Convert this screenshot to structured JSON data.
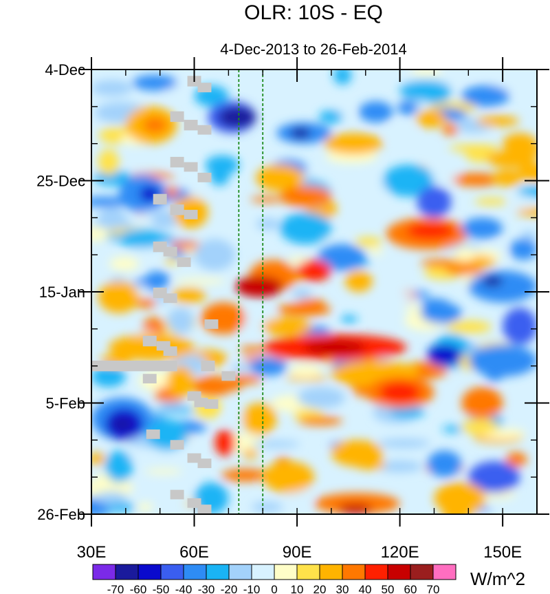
{
  "chart_data": {
    "type": "heatmap",
    "title": "OLR: 10S - EQ",
    "subtitle": "4-Dec-2013 to 26-Feb-2014",
    "x_axis": {
      "range": [
        30,
        160
      ],
      "ticks": [
        30,
        60,
        90,
        120,
        150
      ],
      "tick_labels": [
        "30E",
        "60E",
        "90E",
        "120E",
        "150E"
      ]
    },
    "y_axis": {
      "start_date": "4-Dec-2013",
      "end_date": "26-Feb-2014",
      "range_days": [
        0,
        84
      ],
      "major_ticks_days": [
        0,
        21,
        42,
        63,
        84
      ],
      "tick_labels": [
        "4-Dec",
        "25-Dec",
        "15-Jan",
        "5-Feb",
        "26-Feb"
      ],
      "minor_tick_interval_days": 7
    },
    "reference_lines_lon": [
      73,
      80
    ],
    "colorbar": {
      "units": "W/m^2",
      "levels": [
        -70,
        -60,
        -50,
        -40,
        -30,
        -20,
        -10,
        0,
        10,
        20,
        30,
        40,
        50,
        60,
        70
      ],
      "level_labels": [
        "-70",
        "-60",
        "-50",
        "-40",
        "-30",
        "-20",
        "-10",
        "0",
        "10",
        "20",
        "30",
        "40",
        "50",
        "60",
        "70"
      ],
      "colors": [
        "#7b2ae8",
        "#1a1a9c",
        "#0a0acd",
        "#3a5ef0",
        "#2e8cf5",
        "#1ab4f5",
        "#a3d2fb",
        "#d8f2ff",
        "#fffec8",
        "#ffe24a",
        "#ffb400",
        "#ff7800",
        "#ff2000",
        "#c80000",
        "#9a1e1e",
        "#ff6ec0"
      ]
    },
    "missing_color": "#c8c8c8",
    "features": [
      {
        "desc": "strong negative anomaly",
        "lon_range": [
          66,
          80
        ],
        "day_range": [
          7,
          11
        ],
        "value_approx": -70
      },
      {
        "desc": "positive band",
        "lon_range": [
          73,
          105
        ],
        "day_range": [
          38,
          42
        ],
        "value_approx": 50
      },
      {
        "desc": "positive band",
        "lon_range": [
          75,
          120
        ],
        "day_range": [
          50,
          56
        ],
        "value_approx": 50
      },
      {
        "desc": "negative patch",
        "lon_range": [
          34,
          45
        ],
        "day_range": [
          64,
          70
        ],
        "value_approx": -70
      }
    ]
  }
}
